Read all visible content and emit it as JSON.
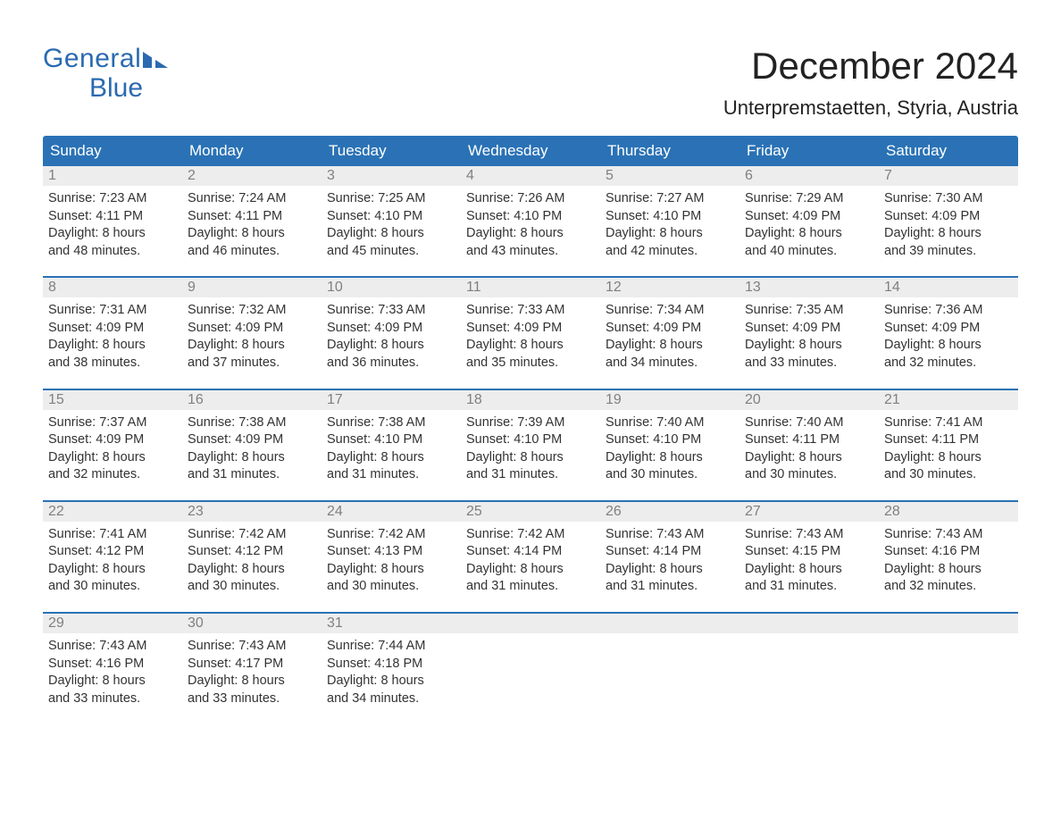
{
  "brand": {
    "line1": "General",
    "line2": "Blue",
    "color": "#2a6ab0"
  },
  "title": "December 2024",
  "location": "Unterpremstaetten, Styria, Austria",
  "colors": {
    "header_bg": "#2a72b5",
    "header_text": "#ffffff",
    "daynum_bg": "#ededed",
    "daynum_text": "#808080",
    "body_text": "#333333",
    "page_bg": "#ffffff",
    "week_border": "#2a72b5"
  },
  "typography": {
    "title_fontsize": 42,
    "location_fontsize": 22,
    "weekday_fontsize": 17,
    "daynum_fontsize": 16,
    "body_fontsize": 14.5,
    "logo_fontsize": 30
  },
  "weekdays": [
    "Sunday",
    "Monday",
    "Tuesday",
    "Wednesday",
    "Thursday",
    "Friday",
    "Saturday"
  ],
  "weeks": [
    [
      {
        "n": "1",
        "sunrise": "7:23 AM",
        "sunset": "4:11 PM",
        "dl1": "Daylight: 8 hours",
        "dl2": "and 48 minutes."
      },
      {
        "n": "2",
        "sunrise": "7:24 AM",
        "sunset": "4:11 PM",
        "dl1": "Daylight: 8 hours",
        "dl2": "and 46 minutes."
      },
      {
        "n": "3",
        "sunrise": "7:25 AM",
        "sunset": "4:10 PM",
        "dl1": "Daylight: 8 hours",
        "dl2": "and 45 minutes."
      },
      {
        "n": "4",
        "sunrise": "7:26 AM",
        "sunset": "4:10 PM",
        "dl1": "Daylight: 8 hours",
        "dl2": "and 43 minutes."
      },
      {
        "n": "5",
        "sunrise": "7:27 AM",
        "sunset": "4:10 PM",
        "dl1": "Daylight: 8 hours",
        "dl2": "and 42 minutes."
      },
      {
        "n": "6",
        "sunrise": "7:29 AM",
        "sunset": "4:09 PM",
        "dl1": "Daylight: 8 hours",
        "dl2": "and 40 minutes."
      },
      {
        "n": "7",
        "sunrise": "7:30 AM",
        "sunset": "4:09 PM",
        "dl1": "Daylight: 8 hours",
        "dl2": "and 39 minutes."
      }
    ],
    [
      {
        "n": "8",
        "sunrise": "7:31 AM",
        "sunset": "4:09 PM",
        "dl1": "Daylight: 8 hours",
        "dl2": "and 38 minutes."
      },
      {
        "n": "9",
        "sunrise": "7:32 AM",
        "sunset": "4:09 PM",
        "dl1": "Daylight: 8 hours",
        "dl2": "and 37 minutes."
      },
      {
        "n": "10",
        "sunrise": "7:33 AM",
        "sunset": "4:09 PM",
        "dl1": "Daylight: 8 hours",
        "dl2": "and 36 minutes."
      },
      {
        "n": "11",
        "sunrise": "7:33 AM",
        "sunset": "4:09 PM",
        "dl1": "Daylight: 8 hours",
        "dl2": "and 35 minutes."
      },
      {
        "n": "12",
        "sunrise": "7:34 AM",
        "sunset": "4:09 PM",
        "dl1": "Daylight: 8 hours",
        "dl2": "and 34 minutes."
      },
      {
        "n": "13",
        "sunrise": "7:35 AM",
        "sunset": "4:09 PM",
        "dl1": "Daylight: 8 hours",
        "dl2": "and 33 minutes."
      },
      {
        "n": "14",
        "sunrise": "7:36 AM",
        "sunset": "4:09 PM",
        "dl1": "Daylight: 8 hours",
        "dl2": "and 32 minutes."
      }
    ],
    [
      {
        "n": "15",
        "sunrise": "7:37 AM",
        "sunset": "4:09 PM",
        "dl1": "Daylight: 8 hours",
        "dl2": "and 32 minutes."
      },
      {
        "n": "16",
        "sunrise": "7:38 AM",
        "sunset": "4:09 PM",
        "dl1": "Daylight: 8 hours",
        "dl2": "and 31 minutes."
      },
      {
        "n": "17",
        "sunrise": "7:38 AM",
        "sunset": "4:10 PM",
        "dl1": "Daylight: 8 hours",
        "dl2": "and 31 minutes."
      },
      {
        "n": "18",
        "sunrise": "7:39 AM",
        "sunset": "4:10 PM",
        "dl1": "Daylight: 8 hours",
        "dl2": "and 31 minutes."
      },
      {
        "n": "19",
        "sunrise": "7:40 AM",
        "sunset": "4:10 PM",
        "dl1": "Daylight: 8 hours",
        "dl2": "and 30 minutes."
      },
      {
        "n": "20",
        "sunrise": "7:40 AM",
        "sunset": "4:11 PM",
        "dl1": "Daylight: 8 hours",
        "dl2": "and 30 minutes."
      },
      {
        "n": "21",
        "sunrise": "7:41 AM",
        "sunset": "4:11 PM",
        "dl1": "Daylight: 8 hours",
        "dl2": "and 30 minutes."
      }
    ],
    [
      {
        "n": "22",
        "sunrise": "7:41 AM",
        "sunset": "4:12 PM",
        "dl1": "Daylight: 8 hours",
        "dl2": "and 30 minutes."
      },
      {
        "n": "23",
        "sunrise": "7:42 AM",
        "sunset": "4:12 PM",
        "dl1": "Daylight: 8 hours",
        "dl2": "and 30 minutes."
      },
      {
        "n": "24",
        "sunrise": "7:42 AM",
        "sunset": "4:13 PM",
        "dl1": "Daylight: 8 hours",
        "dl2": "and 30 minutes."
      },
      {
        "n": "25",
        "sunrise": "7:42 AM",
        "sunset": "4:14 PM",
        "dl1": "Daylight: 8 hours",
        "dl2": "and 31 minutes."
      },
      {
        "n": "26",
        "sunrise": "7:43 AM",
        "sunset": "4:14 PM",
        "dl1": "Daylight: 8 hours",
        "dl2": "and 31 minutes."
      },
      {
        "n": "27",
        "sunrise": "7:43 AM",
        "sunset": "4:15 PM",
        "dl1": "Daylight: 8 hours",
        "dl2": "and 31 minutes."
      },
      {
        "n": "28",
        "sunrise": "7:43 AM",
        "sunset": "4:16 PM",
        "dl1": "Daylight: 8 hours",
        "dl2": "and 32 minutes."
      }
    ],
    [
      {
        "n": "29",
        "sunrise": "7:43 AM",
        "sunset": "4:16 PM",
        "dl1": "Daylight: 8 hours",
        "dl2": "and 33 minutes."
      },
      {
        "n": "30",
        "sunrise": "7:43 AM",
        "sunset": "4:17 PM",
        "dl1": "Daylight: 8 hours",
        "dl2": "and 33 minutes."
      },
      {
        "n": "31",
        "sunrise": "7:44 AM",
        "sunset": "4:18 PM",
        "dl1": "Daylight: 8 hours",
        "dl2": "and 34 minutes."
      },
      null,
      null,
      null,
      null
    ]
  ],
  "labels": {
    "sunrise_prefix": "Sunrise: ",
    "sunset_prefix": "Sunset: "
  }
}
